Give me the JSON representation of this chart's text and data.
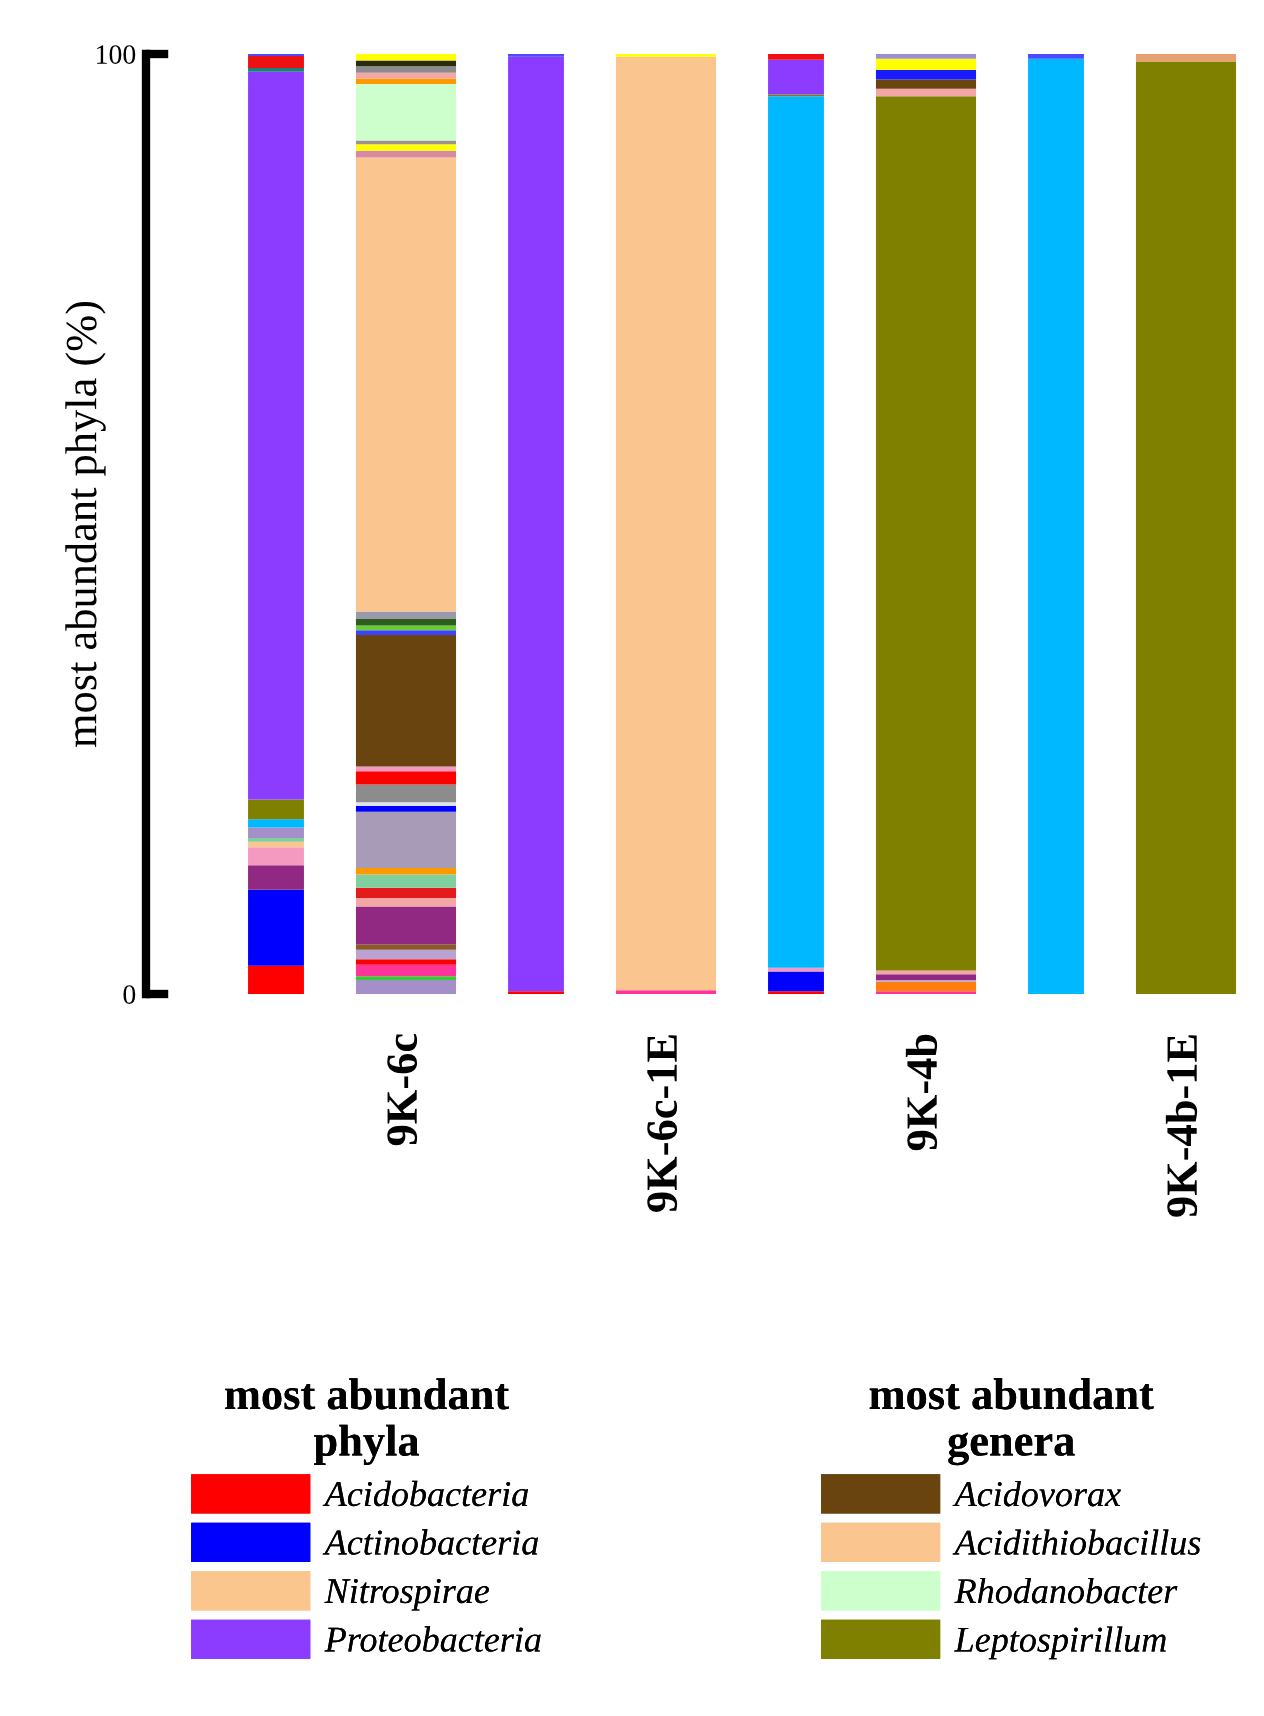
{
  "chart_data": {
    "type": "bar",
    "stacked": true,
    "categories": [
      null,
      "9K-6c",
      null,
      "9K-6c-1E",
      null,
      "9K-4b",
      null,
      "9K-4b-1E"
    ],
    "ylabel": "most abundant phyla (%)",
    "ylim": [
      0,
      100
    ],
    "yticks": [
      0,
      100
    ],
    "grid": false,
    "legend": "bottom",
    "annotations": [
      "most abundant\nphyla",
      "most abundant\ngenera"
    ],
    "series": [
      {
        "name": "Acidobacteria",
        "color": "#ff0000",
        "values": [
          3.0,
          null,
          0.3,
          null,
          0.3,
          null,
          null,
          null
        ]
      },
      {
        "name": "Actinobacteria",
        "color": "#0000ff",
        "values": [
          8.1,
          null,
          null,
          null,
          2.1,
          null,
          null,
          null
        ]
      },
      {
        "color": "#912882",
        "values": [
          2.6,
          null,
          null,
          null,
          null,
          null,
          null,
          null
        ]
      },
      {
        "color": "#f49ac1",
        "values": [
          1.9,
          null,
          null,
          null,
          0.4,
          null,
          null,
          null
        ]
      },
      {
        "name": "Nitrospirae",
        "color": "#fac68e",
        "values": [
          0.6,
          null,
          null,
          null,
          null,
          null,
          null,
          null
        ]
      },
      {
        "color": "#7fcf9f",
        "values": [
          0.4,
          null,
          null,
          null,
          null,
          null,
          null,
          null
        ]
      },
      {
        "color": "#a58fc8",
        "values": [
          1.1,
          null,
          null,
          null,
          null,
          null,
          null,
          null
        ]
      },
      {
        "color": "#00b8ff",
        "values": [
          0.9,
          null,
          null,
          null,
          92.7,
          null,
          99.5,
          null
        ]
      },
      {
        "color": "#808000",
        "values": [
          2.1,
          null,
          null,
          null,
          0.2,
          null,
          null,
          null
        ]
      },
      {
        "name": "Proteobacteria",
        "color": "#8c3cff",
        "values": [
          77.4,
          null,
          99.4,
          null,
          3.7,
          null,
          null,
          null
        ]
      },
      {
        "color": "#1f7f7f",
        "values": [
          0.4,
          null,
          null,
          null,
          null,
          null,
          null,
          null
        ]
      },
      {
        "color": "#ee1111",
        "values": [
          1.3,
          null,
          null,
          null,
          0.6,
          null,
          null,
          null
        ]
      },
      {
        "color": "#4a4aff",
        "values": [
          0.2,
          null,
          0.3,
          null,
          null,
          null,
          0.5,
          null
        ]
      },
      {
        "color": "#a58fc8",
        "values": [
          null,
          1.5,
          null,
          null,
          null,
          null,
          null,
          null
        ]
      },
      {
        "color": "#33cc33",
        "values": [
          null,
          0.4,
          null,
          null,
          null,
          null,
          null,
          null
        ]
      },
      {
        "color": "#ff3399",
        "values": [
          null,
          1.2,
          null,
          0.4,
          null,
          0.3,
          null,
          null
        ]
      },
      {
        "color": "#ff0000",
        "values": [
          null,
          0.6,
          null,
          null,
          null,
          null,
          null,
          null
        ]
      },
      {
        "color": "#ff7f0e",
        "values": [
          null,
          null,
          null,
          null,
          null,
          1.0,
          null,
          null
        ]
      },
      {
        "color": "#b9a3d3",
        "values": [
          null,
          1.0,
          null,
          null,
          null,
          0.2,
          null,
          null
        ]
      },
      {
        "color": "#8b5a2b",
        "values": [
          null,
          0.6,
          null,
          null,
          null,
          null,
          null,
          null
        ]
      },
      {
        "color": "#912882",
        "values": [
          null,
          4.0,
          null,
          null,
          null,
          0.6,
          null,
          null
        ]
      },
      {
        "color": "#f4a6a6",
        "values": [
          null,
          0.9,
          null,
          null,
          null,
          0.4,
          null,
          null
        ]
      },
      {
        "color": "#e41a1c",
        "values": [
          null,
          1.1,
          null,
          null,
          null,
          null,
          null,
          null
        ]
      },
      {
        "color": "#7fcf9f",
        "values": [
          null,
          1.4,
          null,
          null,
          null,
          null,
          null,
          null
        ]
      },
      {
        "color": "#ff9900",
        "values": [
          null,
          0.7,
          null,
          null,
          null,
          null,
          null,
          null
        ]
      },
      {
        "color": "#a89bb8",
        "values": [
          null,
          6.0,
          null,
          null,
          null,
          null,
          null,
          null
        ]
      },
      {
        "color": "#0000ff",
        "values": [
          null,
          0.6,
          null,
          null,
          null,
          null,
          null,
          null
        ]
      },
      {
        "color": "#e0e0f0",
        "values": [
          null,
          0.4,
          null,
          null,
          null,
          null,
          null,
          null
        ]
      },
      {
        "color": "#8c8c8c",
        "values": [
          null,
          1.9,
          null,
          null,
          null,
          null,
          null,
          null
        ]
      },
      {
        "color": "#ff0000",
        "values": [
          null,
          1.4,
          null,
          null,
          null,
          null,
          null,
          null
        ]
      },
      {
        "color": "#f49ac1",
        "values": [
          null,
          0.5,
          null,
          null,
          null,
          null,
          null,
          null
        ]
      },
      {
        "name": "Acidovorax",
        "color": "#69440e",
        "values": [
          null,
          14.0,
          null,
          null,
          null,
          null,
          null,
          null
        ]
      },
      {
        "color": "#4040ff",
        "values": [
          null,
          0.5,
          null,
          null,
          null,
          null,
          null,
          null
        ]
      },
      {
        "color": "#66cc33",
        "values": [
          null,
          0.5,
          null,
          null,
          null,
          null,
          null,
          null
        ]
      },
      {
        "color": "#2e5e1e",
        "values": [
          null,
          0.7,
          null,
          null,
          null,
          null,
          null,
          null
        ]
      },
      {
        "color": "#9a9aaa",
        "values": [
          null,
          0.8,
          null,
          null,
          null,
          null,
          null,
          null
        ]
      },
      {
        "name": "Acidithiobacillus",
        "color": "#fbc58f",
        "values": [
          null,
          48.3,
          null,
          99.3,
          null,
          null,
          null,
          null
        ]
      },
      {
        "color": "#d88aa0",
        "values": [
          null,
          0.7,
          null,
          null,
          null,
          null,
          null,
          null
        ]
      },
      {
        "color": "#ffff00",
        "values": [
          null,
          0.7,
          null,
          0.3,
          null,
          null,
          null,
          null
        ]
      },
      {
        "color": "#a09090",
        "values": [
          null,
          0.4,
          null,
          null,
          null,
          null,
          null,
          null
        ]
      },
      {
        "name": "Rhodanobacter",
        "color": "#ccffcc",
        "values": [
          null,
          6.0,
          null,
          null,
          null,
          null,
          null,
          null
        ]
      },
      {
        "name": "Leptospirillum",
        "color": "#808000",
        "values": [
          null,
          null,
          null,
          null,
          null,
          93.0,
          null,
          99.2
        ]
      },
      {
        "color": "#ff9900",
        "values": [
          null,
          0.6,
          null,
          null,
          null,
          null,
          null,
          null
        ]
      },
      {
        "color": "#f4a6a6",
        "values": [
          null,
          0.6,
          null,
          null,
          null,
          0.8,
          null,
          null
        ]
      },
      {
        "color": "#8c8c8c",
        "values": [
          null,
          0.7,
          null,
          null,
          null,
          null,
          null,
          null
        ]
      },
      {
        "color": "#6b4410",
        "values": [
          null,
          null,
          null,
          null,
          null,
          1.0,
          null,
          null
        ]
      },
      {
        "color": "#2b2b10",
        "values": [
          null,
          0.6,
          null,
          null,
          null,
          null,
          null,
          null
        ]
      },
      {
        "color": "#1a1aff",
        "values": [
          null,
          null,
          null,
          null,
          null,
          1.0,
          null,
          null
        ]
      },
      {
        "color": "#ffff00",
        "values": [
          null,
          0.7,
          null,
          null,
          null,
          1.2,
          null,
          null
        ]
      },
      {
        "color": "#9a8fd0",
        "values": [
          null,
          null,
          null,
          null,
          null,
          0.5,
          null,
          null
        ]
      },
      {
        "color": "#e8a070",
        "values": [
          null,
          null,
          null,
          null,
          null,
          null,
          null,
          0.8
        ]
      }
    ]
  }
}
